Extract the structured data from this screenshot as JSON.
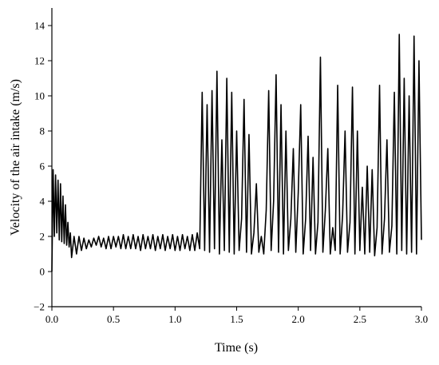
{
  "chart_data": {
    "type": "line",
    "xlabel": "Time (s)",
    "ylabel": "Velocity of the air intake (m/s)",
    "color": "#000000",
    "xlim": [
      0,
      3
    ],
    "ylim": [
      -2,
      15
    ],
    "xticks": [
      {
        "value": 0,
        "label": "0.0"
      },
      {
        "value": 0.5,
        "label": "0.5"
      },
      {
        "value": 1,
        "label": "1.0"
      },
      {
        "value": 1.5,
        "label": "1.5"
      },
      {
        "value": 2,
        "label": "2.0"
      },
      {
        "value": 2.5,
        "label": "2.5"
      },
      {
        "value": 3,
        "label": "3.0"
      }
    ],
    "yticks": [
      {
        "value": -2,
        "label": "−2"
      },
      0,
      2,
      4,
      6,
      8,
      10,
      12,
      14
    ],
    "x": [
      0,
      0.01,
      0.02,
      0.03,
      0.04,
      0.05,
      0.06,
      0.07,
      0.08,
      0.09,
      0.1,
      0.11,
      0.12,
      0.13,
      0.14,
      0.15,
      0.16,
      0.18,
      0.2,
      0.22,
      0.24,
      0.26,
      0.28,
      0.3,
      0.32,
      0.34,
      0.36,
      0.38,
      0.4,
      0.42,
      0.44,
      0.46,
      0.48,
      0.5,
      0.52,
      0.54,
      0.56,
      0.58,
      0.6,
      0.62,
      0.64,
      0.66,
      0.68,
      0.7,
      0.72,
      0.74,
      0.76,
      0.78,
      0.8,
      0.82,
      0.84,
      0.86,
      0.88,
      0.9,
      0.92,
      0.94,
      0.96,
      0.98,
      1.0,
      1.02,
      1.04,
      1.06,
      1.08,
      1.1,
      1.12,
      1.14,
      1.16,
      1.18,
      1.2,
      1.22,
      1.24,
      1.26,
      1.28,
      1.3,
      1.32,
      1.34,
      1.36,
      1.38,
      1.4,
      1.42,
      1.44,
      1.46,
      1.48,
      1.5,
      1.52,
      1.54,
      1.56,
      1.58,
      1.6,
      1.62,
      1.64,
      1.66,
      1.68,
      1.7,
      1.72,
      1.74,
      1.76,
      1.78,
      1.8,
      1.82,
      1.84,
      1.86,
      1.88,
      1.9,
      1.92,
      1.94,
      1.96,
      1.98,
      2.0,
      2.02,
      2.04,
      2.06,
      2.08,
      2.1,
      2.12,
      2.14,
      2.16,
      2.18,
      2.2,
      2.22,
      2.24,
      2.26,
      2.28,
      2.3,
      2.32,
      2.34,
      2.36,
      2.38,
      2.4,
      2.42,
      2.44,
      2.46,
      2.48,
      2.5,
      2.52,
      2.54,
      2.56,
      2.58,
      2.6,
      2.62,
      2.64,
      2.66,
      2.68,
      2.7,
      2.72,
      2.74,
      2.76,
      2.78,
      2.8,
      2.82,
      2.84,
      2.86,
      2.88,
      2.9,
      2.92,
      2.94,
      2.96,
      2.98,
      3.0
    ],
    "values": [
      0,
      5.8,
      2.0,
      5.5,
      2.2,
      5.2,
      1.8,
      5.0,
      1.7,
      4.3,
      1.6,
      3.8,
      1.5,
      2.8,
      1.4,
      2.2,
      0.8,
      2.0,
      1.0,
      2.0,
      1.2,
      1.9,
      1.3,
      1.8,
      1.4,
      1.9,
      1.5,
      2.0,
      1.4,
      1.9,
      1.3,
      2.0,
      1.3,
      2.0,
      1.4,
      2.0,
      1.3,
      2.1,
      1.3,
      2.0,
      1.3,
      2.1,
      1.3,
      2.0,
      1.2,
      2.1,
      1.3,
      2.0,
      1.3,
      2.1,
      1.2,
      2.0,
      1.3,
      2.1,
      1.2,
      2.0,
      1.3,
      2.1,
      1.2,
      2.0,
      1.2,
      2.1,
      1.3,
      2.0,
      1.2,
      2.1,
      1.2,
      2.2,
      1.3,
      10.2,
      1.2,
      9.5,
      1.1,
      10.3,
      1.3,
      11.4,
      1.0,
      7.5,
      1.2,
      11.0,
      1.1,
      10.2,
      1.0,
      8.0,
      1.2,
      3.0,
      9.8,
      1.1,
      7.8,
      1.0,
      2.2,
      5.0,
      1.1,
      2.0,
      1.0,
      3.5,
      10.3,
      1.2,
      4.0,
      11.2,
      1.1,
      9.5,
      1.0,
      8.0,
      1.2,
      3.0,
      7.0,
      1.1,
      4.5,
      9.5,
      1.0,
      3.0,
      7.7,
      1.2,
      6.5,
      1.0,
      2.8,
      12.2,
      1.1,
      3.5,
      7.0,
      1.0,
      2.5,
      1.2,
      10.6,
      1.0,
      3.2,
      8.0,
      1.1,
      2.8,
      10.5,
      1.0,
      8.0,
      1.2,
      4.8,
      1.0,
      6.0,
      1.1,
      5.8,
      0.9,
      2.5,
      10.6,
      1.0,
      3.0,
      7.5,
      1.1,
      2.6,
      10.2,
      1.0,
      13.5,
      1.2,
      11.0,
      1.0,
      10.0,
      1.1,
      13.4,
      1.0,
      12.0,
      1.8
    ]
  }
}
